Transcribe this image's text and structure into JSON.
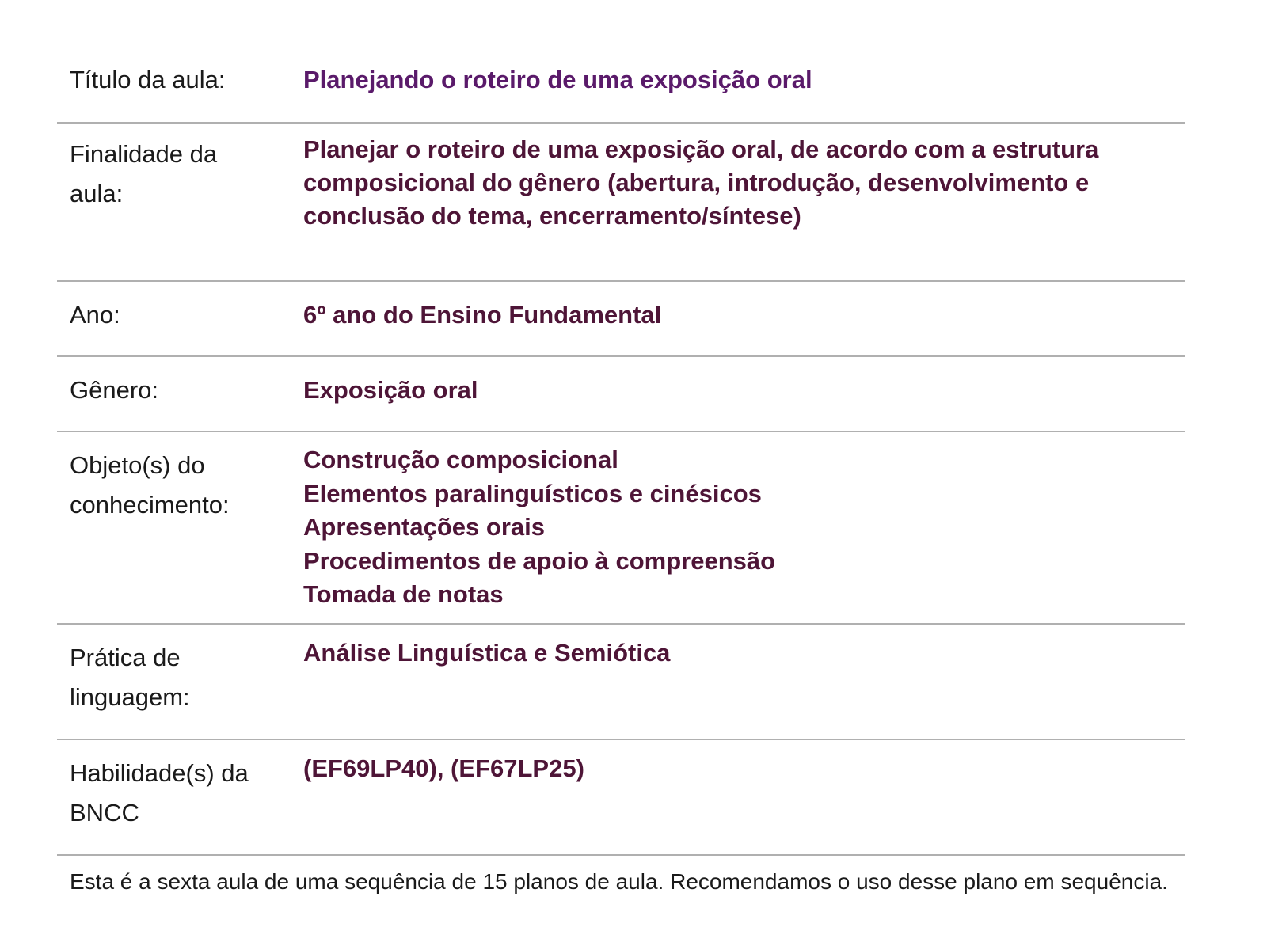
{
  "rows": [
    {
      "label": "Título da aula:",
      "value": "Planejando o roteiro de uma exposição oral"
    },
    {
      "label": "Finalidade da aula:",
      "value": "Planejar o roteiro de uma exposição oral, de acordo com a estrutura composicional do gênero (abertura, introdução, desenvolvimento e conclusão do tema, encerramento/síntese)"
    },
    {
      "label": "Ano:",
      "value": "6º ano do Ensino Fundamental"
    },
    {
      "label": "Gênero:",
      "value": "Exposição oral"
    },
    {
      "label": "Objeto(s) do conhecimento:",
      "values": [
        "Construção composicional",
        "Elementos paralinguísticos e cinésicos",
        "Apresentações orais",
        "Procedimentos de apoio à compreensão",
        "Tomada de notas"
      ]
    },
    {
      "label": "Prática de linguagem:",
      "value": "Análise Linguística e Semiótica"
    },
    {
      "label": "Habilidade(s) da BNCC",
      "value": "(EF69LP40), (EF67LP25)"
    }
  ],
  "footer": "Esta é a sexta aula de uma sequência de 15 planos de aula. Recomendamos o uso desse plano em sequência.",
  "colors": {
    "title": "#5a1a6a",
    "value": "#4e1537",
    "divider": "#b0b0b0"
  }
}
